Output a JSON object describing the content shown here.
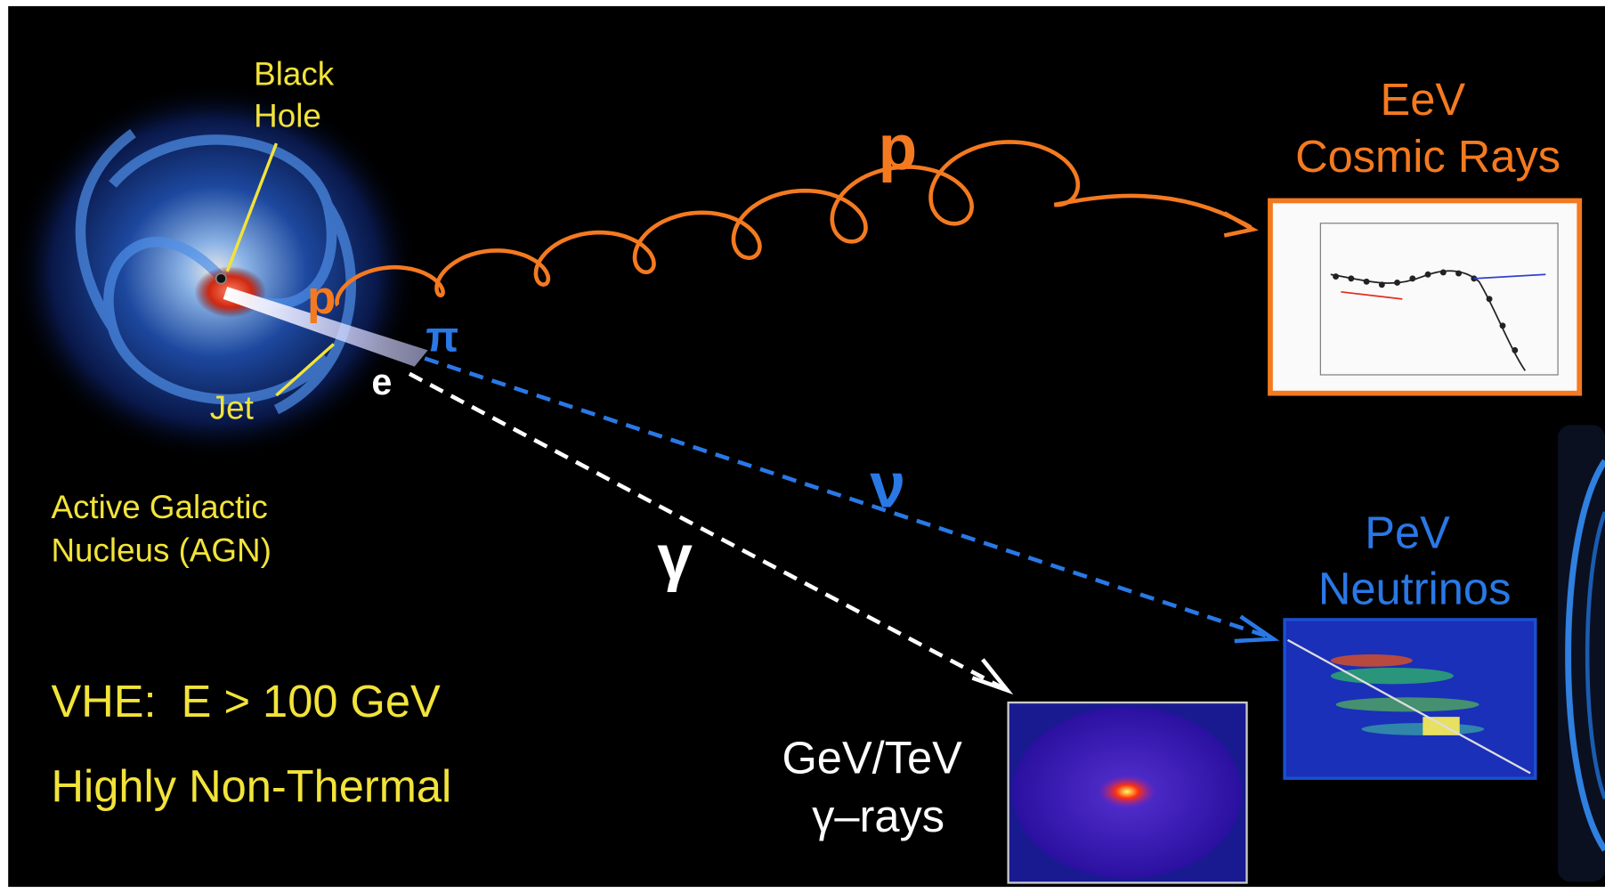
{
  "agn": {
    "black_hole": [
      "Black",
      "Hole"
    ],
    "jet": "Jet",
    "name": [
      "Active Galactic",
      "Nucleus (AGN)"
    ]
  },
  "particles": {
    "proton_source": "p",
    "pion": "π",
    "electron": "e",
    "proton_path": "p",
    "neutrino": "ν",
    "gamma": "γ"
  },
  "targets": {
    "cosmic_rays": [
      "EeV",
      "Cosmic Rays"
    ],
    "neutrinos": [
      "PeV",
      "Neutrinos"
    ],
    "gamma_rays": [
      "GeV/TeV",
      "γ–rays"
    ]
  },
  "notes": [
    "VHE:  E > 100 GeV",
    "Highly Non-Thermal"
  ]
}
